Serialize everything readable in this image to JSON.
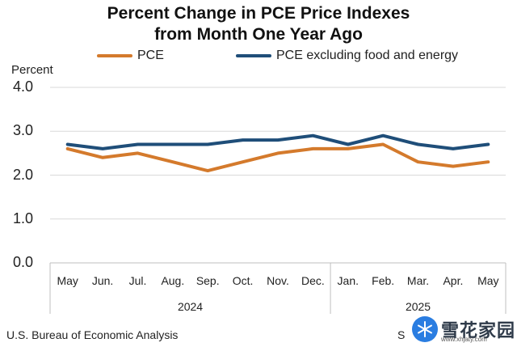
{
  "chart_data": {
    "type": "line",
    "title": [
      "Percent Change in PCE Price Indexes",
      "from Month One Year Ago"
    ],
    "ylabel": "Percent",
    "ylim": [
      0,
      4
    ],
    "yticks": [
      "0.0",
      "1.0",
      "2.0",
      "3.0",
      "4.0"
    ],
    "ytick_values": [
      0,
      1,
      2,
      3,
      4
    ],
    "grid": true,
    "categories": [
      "May",
      "Jun.",
      "Jul.",
      "Aug.",
      "Sep.",
      "Oct.",
      "Nov.",
      "Dec.",
      "Jan.",
      "Feb.",
      "Mar.",
      "Apr.",
      "May"
    ],
    "year_groups": [
      {
        "label": "2024",
        "start": 0,
        "end": 7
      },
      {
        "label": "2025",
        "start": 8,
        "end": 12
      }
    ],
    "legend_position": "top",
    "series": [
      {
        "name": "PCE",
        "color": "#d47a2c",
        "values": [
          2.6,
          2.4,
          2.5,
          2.3,
          2.1,
          2.3,
          2.5,
          2.6,
          2.6,
          2.7,
          2.3,
          2.2,
          2.3
        ]
      },
      {
        "name": "PCE excluding food and energy",
        "color": "#1f4e79",
        "values": [
          2.7,
          2.6,
          2.7,
          2.7,
          2.7,
          2.8,
          2.8,
          2.9,
          2.7,
          2.9,
          2.7,
          2.6,
          2.7
        ]
      }
    ]
  },
  "footer": {
    "source": "U.S. Bureau of Economic Analysis",
    "source_cut": "S"
  },
  "watermark": {
    "text": "雪花家园",
    "url": "www.xhjaty.com",
    "color": "#2a7de1"
  }
}
